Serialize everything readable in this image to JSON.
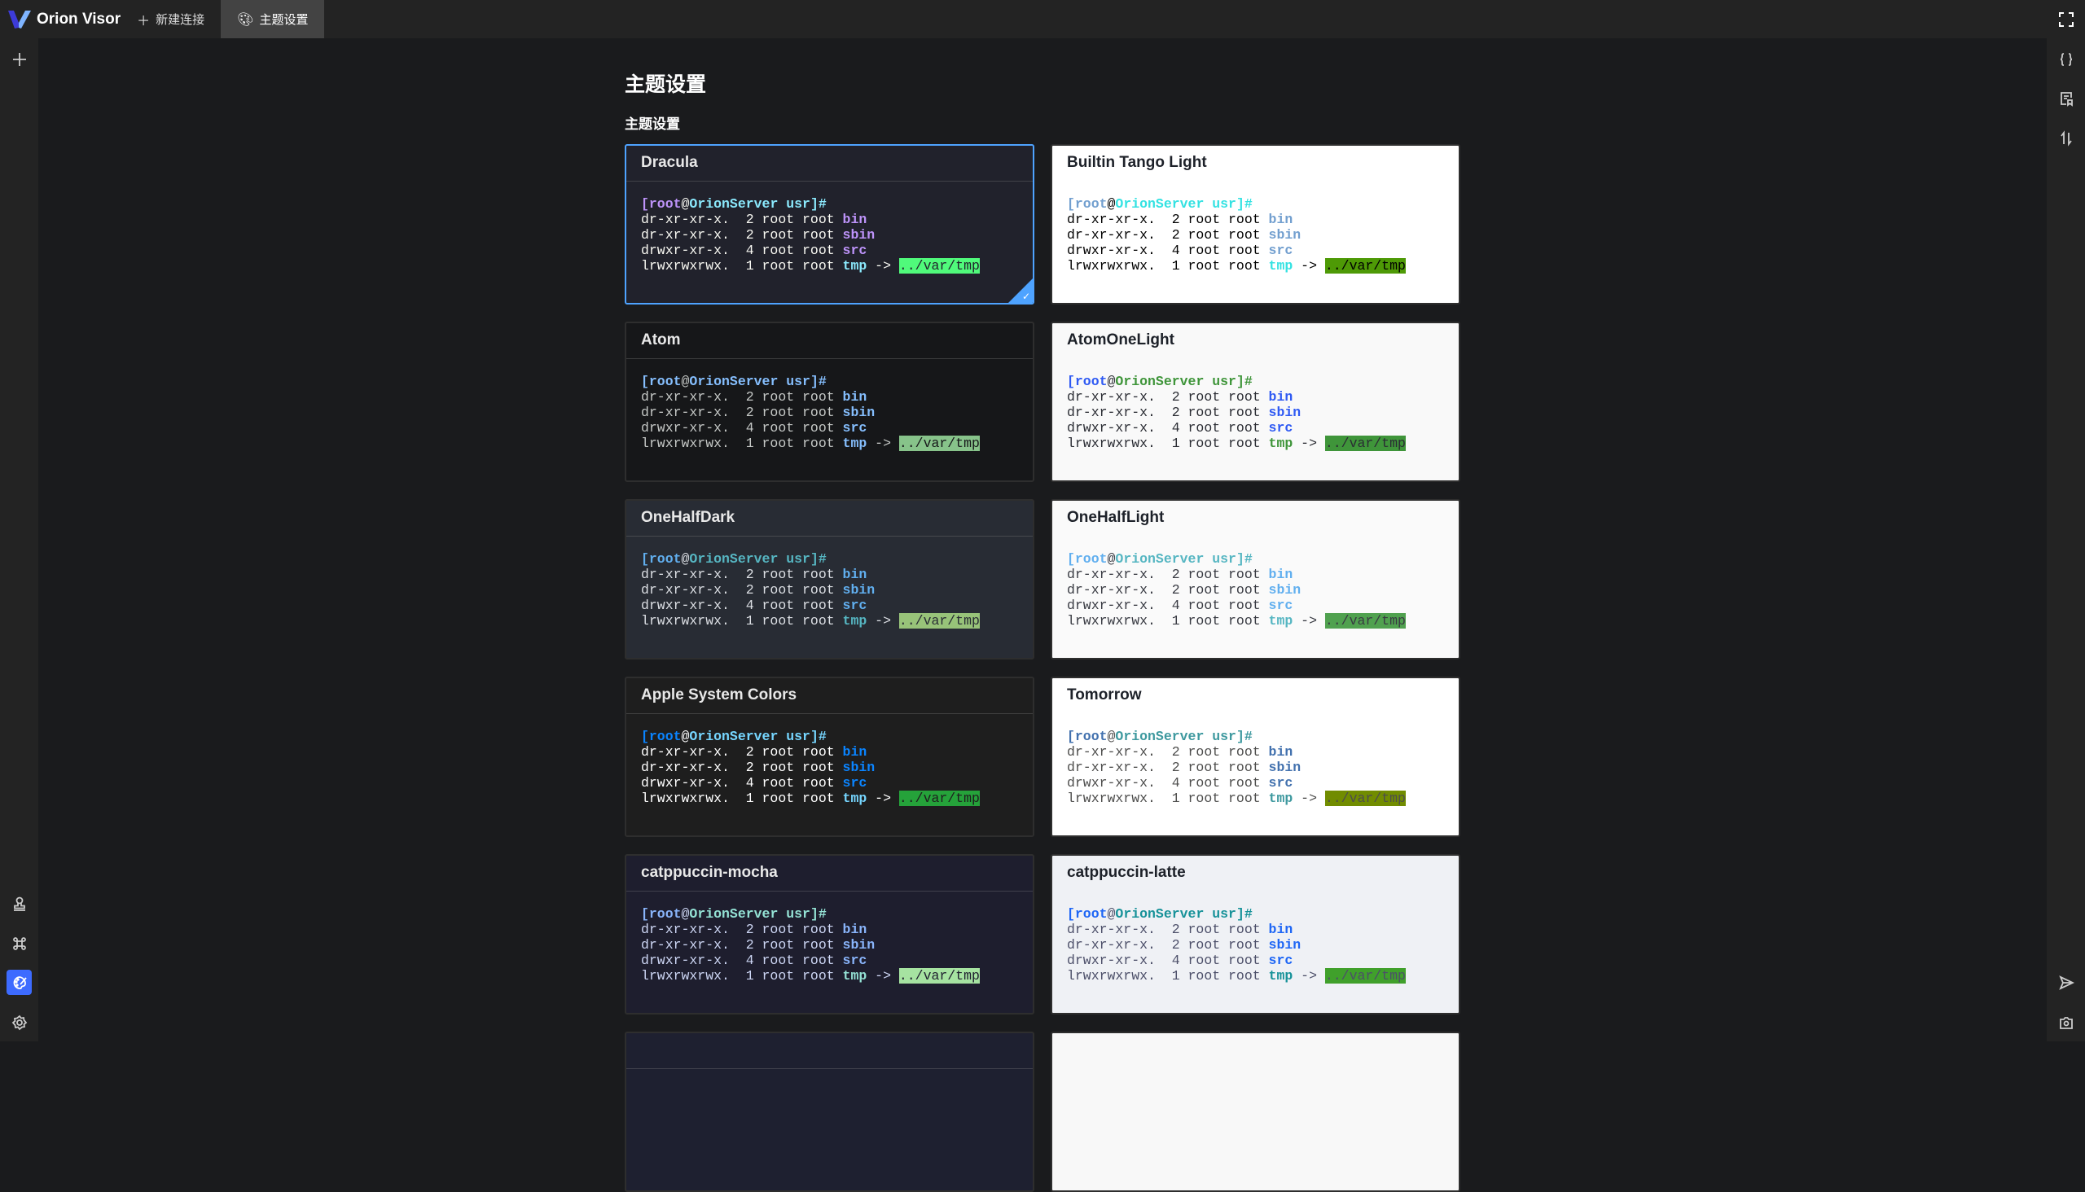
{
  "app": {
    "name": "Orion Visor",
    "brand_color": "#3d6bff"
  },
  "tabs": [
    {
      "label": "新建连接",
      "icon": "plus-icon",
      "active": false
    },
    {
      "label": "主题设置",
      "icon": "palette-icon",
      "active": true
    }
  ],
  "page": {
    "title": "主题设置",
    "section_title": "主题设置"
  },
  "terminal_sample": {
    "prompt_user": "[root",
    "prompt_at": "@",
    "prompt_host": "OrionServer usr]",
    "prompt_hash": "#",
    "lines": [
      {
        "perm": "dr-xr-xr-x.  2 root root ",
        "name": "bin",
        "kind": "dir"
      },
      {
        "perm": "dr-xr-xr-x.  2 root root ",
        "name": "sbin",
        "kind": "dir"
      },
      {
        "perm": "drwxr-xr-x.  4 root root ",
        "name": "src",
        "kind": "dir"
      },
      {
        "perm": "lrwxrwxrwx.  1 root root ",
        "name": "tmp",
        "kind": "link",
        "arrow": " -> ",
        "target": "../var/tmp"
      }
    ]
  },
  "themes": [
    {
      "name": "Dracula",
      "selected": true,
      "dark": true,
      "bg": "#21222c",
      "fg": "#f8f8f2",
      "user": "#bd93f9",
      "host": "#8be9fd",
      "dir": "#bd93f9",
      "link": "#8be9fd",
      "target_bg": "#50fa7b",
      "target_fg": "#21222c"
    },
    {
      "name": "Builtin Tango Light",
      "selected": false,
      "dark": false,
      "bg": "#ffffff",
      "fg": "#000000",
      "user": "#729fcf",
      "host": "#34e2e2",
      "dir": "#729fcf",
      "link": "#34e2e2",
      "target_bg": "#4e9a06",
      "target_fg": "#000000"
    },
    {
      "name": "Atom",
      "selected": false,
      "dark": true,
      "bg": "#161719",
      "fg": "#c5c8c6",
      "user": "#85befd",
      "host": "#85befd",
      "dir": "#85befd",
      "link": "#85befd",
      "target_bg": "#87c38a",
      "target_fg": "#161719"
    },
    {
      "name": "AtomOneLight",
      "selected": false,
      "dark": false,
      "bg": "#f9f9f9",
      "fg": "#2a2c33",
      "user": "#2f5af3",
      "host": "#3f953a",
      "dir": "#2f5af3",
      "link": "#3f953a",
      "target_bg": "#3f953a",
      "target_fg": "#2a2c33"
    },
    {
      "name": "OneHalfDark",
      "selected": false,
      "dark": true,
      "bg": "#282c34",
      "fg": "#dcdfe4",
      "user": "#61afef",
      "host": "#56b6c2",
      "dir": "#61afef",
      "link": "#56b6c2",
      "target_bg": "#98c379",
      "target_fg": "#282c34"
    },
    {
      "name": "OneHalfLight",
      "selected": false,
      "dark": false,
      "bg": "#fafafa",
      "fg": "#383a42",
      "user": "#61afef",
      "host": "#56b6c2",
      "dir": "#61afef",
      "link": "#56b6c2",
      "target_bg": "#50a14f",
      "target_fg": "#383a42"
    },
    {
      "name": "Apple System Colors",
      "selected": false,
      "dark": true,
      "bg": "#1e1e1e",
      "fg": "#ffffff",
      "user": "#0a84ff",
      "host": "#76d6ff",
      "dir": "#0a84ff",
      "link": "#76d6ff",
      "target_bg": "#25a23a",
      "target_fg": "#1e1e1e"
    },
    {
      "name": "Tomorrow",
      "selected": false,
      "dark": false,
      "bg": "#ffffff",
      "fg": "#4d4d4c",
      "user": "#4271ae",
      "host": "#3e999f",
      "dir": "#4271ae",
      "link": "#3e999f",
      "target_bg": "#718c00",
      "target_fg": "#4d4d4c"
    },
    {
      "name": "catppuccin-mocha",
      "selected": false,
      "dark": true,
      "bg": "#1e1e2e",
      "fg": "#cdd6f4",
      "user": "#89b4fa",
      "host": "#94e2d5",
      "dir": "#89b4fa",
      "link": "#94e2d5",
      "target_bg": "#a6e3a1",
      "target_fg": "#1e1e2e"
    },
    {
      "name": "catppuccin-latte",
      "selected": false,
      "dark": false,
      "bg": "#eff1f5",
      "fg": "#4c4f69",
      "user": "#1e66f5",
      "host": "#179299",
      "dir": "#1e66f5",
      "link": "#179299",
      "target_bg": "#40a02b",
      "target_fg": "#4c4f69"
    },
    {
      "name": "",
      "selected": false,
      "dark": true,
      "bg": "#1e2030"
    },
    {
      "name": "",
      "selected": false,
      "dark": false,
      "bg": "#f8f8f8"
    }
  ],
  "left_sidebar": [
    {
      "icon": "plus-icon"
    },
    {
      "icon": "user-stamp-icon"
    },
    {
      "icon": "command-icon"
    },
    {
      "icon": "palette-icon",
      "active": true
    },
    {
      "icon": "gear-icon"
    }
  ],
  "right_sidebar": [
    {
      "icon": "fullscreen-icon"
    },
    {
      "icon": "braces-icon"
    },
    {
      "icon": "snippet-icon"
    },
    {
      "icon": "transfer-icon"
    },
    {
      "icon": "send-icon"
    },
    {
      "icon": "camera-icon"
    }
  ]
}
